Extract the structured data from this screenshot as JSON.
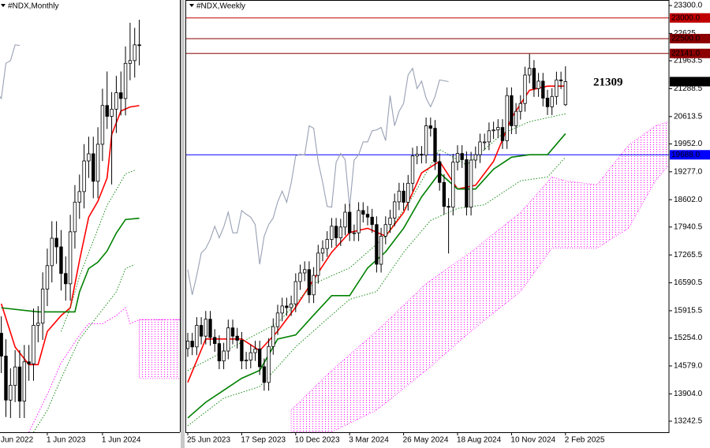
{
  "chart_data": [
    {
      "type": "candlestick",
      "title": "#NDX,Monthly",
      "categories": [
        "Jun 2022",
        null,
        null,
        null,
        null,
        null,
        null,
        null,
        null,
        null,
        null,
        null,
        "1 Jun 2023",
        null,
        null,
        null,
        null,
        null,
        null,
        null,
        null,
        null,
        null,
        null,
        "1 Jun 2024",
        null,
        null,
        null,
        null,
        null,
        null,
        null,
        null
      ],
      "open": [
        12644,
        11504,
        12947,
        12272,
        10971,
        11406,
        11951,
        10939,
        12102,
        12043,
        13181,
        13246,
        14254,
        14946,
        15758,
        15502,
        14715,
        14410,
        15948,
        16826,
        17137,
        18044,
        18255,
        17441,
        18537,
        19683,
        19362,
        19575,
        20061,
        19890,
        20930,
        21012,
        21478
      ],
      "high": [
        12940,
        13450,
        13450,
        12770,
        11910,
        12450,
        12450,
        12600,
        12600,
        13680,
        13750,
        14750,
        15450,
        16260,
        16260,
        16000,
        15220,
        16450,
        17330,
        17640,
        18540,
        18760,
        18760,
        19040,
        20180,
        20690,
        20080,
        20560,
        20690,
        21430,
        22130,
        21980,
        22220
      ],
      "low": [
        11040,
        11000,
        11770,
        10470,
        10440,
        10910,
        10440,
        10440,
        11540,
        11540,
        12680,
        12750,
        13750,
        14450,
        15000,
        14210,
        13910,
        13910,
        15450,
        16330,
        16640,
        17540,
        16940,
        16940,
        18040,
        18990,
        17350,
        18870,
        19390,
        19390,
        20430,
        20510,
        20870
      ],
      "close": [
        11504,
        12947,
        12272,
        10971,
        11406,
        11951,
        10939,
        12102,
        12043,
        13181,
        13246,
        14254,
        14946,
        15758,
        15502,
        14715,
        14410,
        15948,
        16826,
        17137,
        18044,
        18255,
        17441,
        18537,
        19683,
        19362,
        19575,
        20061,
        19890,
        20930,
        21012,
        21478,
        21459
      ],
      "ylim": [
        10020,
        22780
      ],
      "lines": [
        {
          "color": "#ff0000",
          "dash": "solid",
          "x": [
            2,
            5,
            8,
            10,
            12,
            15,
            17,
            19,
            21,
            23,
            25,
            26,
            28,
            30,
            32
          ],
          "values": [
            13820,
            12540,
            12020,
            12020,
            13000,
            13470,
            13700,
            15100,
            16380,
            16850,
            17540,
            18820,
            19520,
            19640,
            19680
          ]
        },
        {
          "color": "#008000",
          "dash": "solid",
          "x": [
            2,
            10,
            18,
            19,
            21,
            23,
            25,
            27,
            29,
            32
          ],
          "values": [
            13700,
            13580,
            13580,
            14170,
            14860,
            15050,
            15380,
            15910,
            16310,
            16350
          ]
        },
        {
          "color": "#008000",
          "dash": "dotted",
          "x": [
            15,
            17,
            19,
            21,
            23,
            25,
            27,
            29,
            31
          ],
          "values": [
            13000,
            13700,
            14630,
            15330,
            16030,
            16730,
            17190,
            17660,
            17770
          ]
        },
        {
          "color": "#008000",
          "dash": "dotted",
          "x": [
            9,
            12,
            15,
            19,
            23,
            27,
            29,
            31
          ],
          "values": [
            10020,
            10670,
            11610,
            12770,
            13470,
            14170,
            14860,
            14980
          ]
        },
        {
          "color": "#ff00ff",
          "dash": "dotted",
          "x": [
            8,
            12,
            15,
            19,
            21,
            24,
            27,
            29,
            30,
            32,
            36,
            41
          ],
          "values": [
            10020,
            11140,
            12070,
            12890,
            13230,
            13230,
            13470,
            13700,
            13230,
            13350,
            13350,
            13350
          ]
        }
      ],
      "cloud": {
        "color": "#ff00ff",
        "x": [
          32,
          36,
          41
        ],
        "upper": [
          13350,
          13350,
          13350
        ],
        "lower": [
          11610,
          11610,
          11610
        ]
      },
      "chikou_color": "#98a0b4"
    },
    {
      "type": "candlestick",
      "title": "#NDX,Weekly",
      "categories": [
        "25 Jun 2023",
        null,
        null,
        null,
        null,
        null,
        null,
        null,
        null,
        null,
        null,
        null,
        "17 Sep 2023",
        null,
        null,
        null,
        null,
        null,
        null,
        null,
        null,
        null,
        null,
        null,
        "10 Dec 2023",
        null,
        null,
        null,
        null,
        null,
        null,
        null,
        null,
        null,
        null,
        null,
        "3 Mar 2024",
        null,
        null,
        null,
        null,
        null,
        null,
        null,
        null,
        null,
        null,
        null,
        "26 May 2024",
        null,
        null,
        null,
        null,
        null,
        null,
        null,
        null,
        null,
        null,
        null,
        "18 Aug 2024",
        null,
        null,
        null,
        null,
        null,
        null,
        null,
        null,
        null,
        null,
        null,
        "10 Nov 2024",
        null,
        null,
        null,
        null,
        null,
        null,
        null,
        null,
        null,
        null,
        null,
        "2 Feb 2025"
      ],
      "open": [
        15000,
        15180,
        15040,
        15560,
        15300,
        15710,
        15270,
        15120,
        14700,
        14940,
        15500,
        15300,
        15200,
        14700,
        14720,
        14900,
        14990,
        14560,
        14180,
        15050,
        15530,
        15860,
        16030,
        15990,
        16080,
        16620,
        16830,
        16910,
        16300,
        16770,
        17310,
        17420,
        17640,
        17960,
        17680,
        17940,
        18300,
        17800,
        17800,
        18340,
        18250,
        18180,
        18000,
        17040,
        17720,
        18000,
        18160,
        18550,
        18810,
        18540,
        19000,
        19660,
        19700,
        19680,
        20390,
        20330,
        19520,
        19020,
        18440,
        18420,
        19510,
        19720,
        19570,
        18420,
        19560,
        19690,
        20000,
        20000,
        20270,
        20290,
        20350,
        20030,
        21120,
        20390,
        20740,
        20930,
        21620,
        21780,
        21290,
        21470,
        21060,
        20850,
        21100,
        21500,
        20900
      ],
      "high": [
        15380,
        15380,
        15760,
        15760,
        15910,
        15910,
        15470,
        15320,
        15140,
        15700,
        15700,
        15500,
        15400,
        14920,
        15100,
        15190,
        15190,
        14760,
        15250,
        15730,
        16060,
        16230,
        16230,
        16280,
        16820,
        17030,
        17110,
        17110,
        16970,
        17510,
        17620,
        17840,
        18160,
        18160,
        18140,
        18500,
        18500,
        18000,
        18540,
        18540,
        18450,
        18380,
        18200,
        17920,
        18200,
        18360,
        18750,
        19010,
        19010,
        19200,
        19860,
        19900,
        19900,
        20590,
        20590,
        20530,
        19720,
        19220,
        18640,
        19710,
        19920,
        19920,
        19770,
        19760,
        19890,
        20200,
        20200,
        20470,
        20490,
        20550,
        20550,
        21320,
        21320,
        20940,
        21130,
        21820,
        22130,
        21980,
        21670,
        21670,
        21260,
        21300,
        21700,
        21700,
        21830
      ],
      "low": [
        14800,
        14840,
        14840,
        15100,
        15100,
        15070,
        14920,
        14500,
        14500,
        14740,
        15100,
        15000,
        14500,
        14500,
        14520,
        14700,
        14360,
        13980,
        13980,
        14850,
        15330,
        15660,
        15790,
        15790,
        15880,
        16420,
        16630,
        16100,
        16100,
        16570,
        17110,
        17220,
        17440,
        17480,
        17480,
        17740,
        17600,
        17600,
        17600,
        18050,
        17980,
        17800,
        16840,
        16840,
        17520,
        17800,
        17960,
        18350,
        18340,
        18340,
        18800,
        19460,
        19480,
        19480,
        20130,
        19320,
        18820,
        18240,
        17300,
        18220,
        19310,
        19370,
        18220,
        18220,
        19360,
        19490,
        19800,
        19800,
        20070,
        20090,
        19830,
        19830,
        20190,
        20190,
        20540,
        20730,
        21420,
        21090,
        21090,
        20860,
        20650,
        20650,
        20900,
        21280,
        20870
      ],
      "close": [
        15180,
        15040,
        15560,
        15300,
        15710,
        15270,
        15120,
        14700,
        14940,
        15500,
        15300,
        15200,
        14700,
        14720,
        14900,
        14990,
        14560,
        14180,
        15050,
        15530,
        15860,
        16030,
        15990,
        16080,
        16620,
        16830,
        16910,
        16300,
        16770,
        17310,
        17420,
        17640,
        17960,
        17680,
        17940,
        18300,
        17800,
        17800,
        18340,
        18250,
        18180,
        18000,
        17040,
        17720,
        18000,
        18160,
        18550,
        18810,
        18540,
        19000,
        19660,
        19700,
        19680,
        20390,
        20330,
        19520,
        19020,
        18440,
        18420,
        19510,
        19720,
        19570,
        18420,
        19560,
        19690,
        20000,
        20000,
        20270,
        20290,
        20350,
        20030,
        21120,
        20390,
        20740,
        20930,
        21620,
        21780,
        21290,
        21470,
        21060,
        20850,
        21100,
        21500,
        21480,
        21459
      ],
      "ylim": [
        12975,
        23415
      ],
      "yticks": [
        {
          "value": 23300,
          "label": "23300.0"
        },
        22625,
        21963.5,
        21288.5,
        20613.5,
        {
          "value": 19952,
          "label": "19952.0"
        },
        {
          "value": 19277,
          "label": "19277.0"
        },
        {
          "value": 18602,
          "label": "18602.0"
        },
        17940.5,
        17265.5,
        16590.5,
        15915.5,
        {
          "value": 15254,
          "label": "15254.0"
        },
        {
          "value": 14579,
          "label": "14579.0"
        },
        {
          "value": 13904,
          "label": "13904.0"
        },
        13242.5
      ],
      "levels": [
        {
          "value": 23000,
          "label": "23000.0",
          "color": "#c00000",
          "line": true
        },
        {
          "value": 22500,
          "label": "22500.0",
          "color": "#8b0000",
          "line": true
        },
        {
          "value": 22141,
          "label": "22141.0",
          "color": "#8b0000",
          "line": true
        },
        {
          "value": 21459,
          "label": "21459.0",
          "color": "#000000",
          "line": false
        },
        {
          "value": 19688,
          "label": "19688.0",
          "color": "#0000ff",
          "line": true
        }
      ],
      "annotation": "21309",
      "lines": [
        {
          "color": "#ff0000",
          "dash": "solid",
          "x": [
            0,
            4,
            8,
            12,
            16,
            20,
            24,
            28,
            32,
            36,
            40,
            44,
            48,
            52,
            56,
            60,
            64,
            68,
            72,
            76,
            80,
            84
          ],
          "values": [
            14180,
            15230,
            15230,
            15230,
            14950,
            15420,
            16000,
            16670,
            17330,
            17810,
            17910,
            17720,
            18290,
            19250,
            19530,
            18860,
            18950,
            19530,
            20580,
            21250,
            21350,
            21350
          ]
        },
        {
          "color": "#008000",
          "dash": "solid",
          "x": [
            0,
            4,
            8,
            12,
            16,
            20,
            24,
            28,
            32,
            36,
            40,
            44,
            48,
            52,
            56,
            60,
            64,
            68,
            72,
            76,
            80,
            84
          ],
          "values": [
            13320,
            13700,
            13990,
            14280,
            14470,
            15230,
            15330,
            15810,
            16280,
            16280,
            16950,
            17340,
            17910,
            18670,
            19250,
            18860,
            18860,
            19340,
            19630,
            19690,
            19690,
            20200
          ]
        },
        {
          "color": "#008000",
          "dash": "dotted",
          "x": [
            0,
            10,
            20,
            28,
            36,
            44,
            50,
            56,
            62,
            70,
            76,
            84
          ],
          "values": [
            14470,
            15040,
            15620,
            16570,
            16950,
            17720,
            18670,
            19820,
            19440,
            20200,
            20490,
            20680
          ]
        },
        {
          "color": "#008000",
          "dash": "dotted",
          "x": [
            0,
            8,
            16,
            24,
            30,
            36,
            42,
            48,
            54,
            60,
            66,
            74,
            80,
            84
          ],
          "values": [
            13130,
            13800,
            14080,
            15040,
            15620,
            16190,
            16380,
            17330,
            18100,
            18390,
            18480,
            19060,
            19150,
            19630
          ]
        }
      ],
      "cloud": {
        "color": "#ff00ff",
        "x": [
          23,
          32,
          42,
          53,
          63,
          74,
          81,
          84,
          91,
          98,
          104,
          107
        ],
        "upper": [
          13510,
          14470,
          15420,
          16570,
          17340,
          18290,
          19150,
          19060,
          18960,
          19920,
          20390,
          20490
        ],
        "lower": [
          12980,
          12980,
          13510,
          14470,
          15420,
          16380,
          17430,
          17430,
          17430,
          17910,
          19060,
          19440
        ]
      },
      "chikou_color": "#98a0b4"
    }
  ]
}
